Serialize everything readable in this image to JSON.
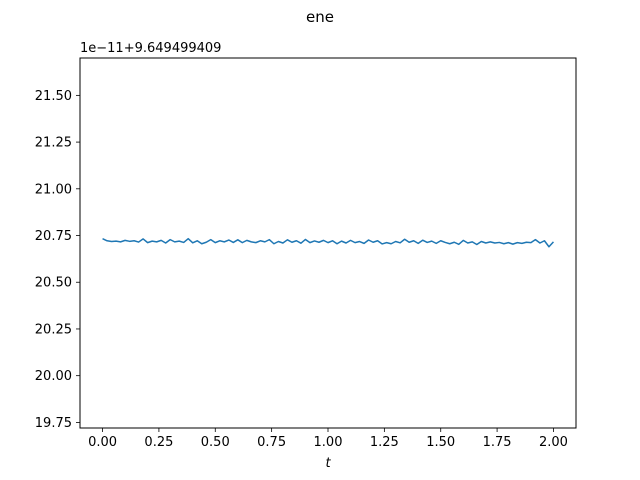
{
  "chart_data": {
    "type": "line",
    "title": "ene",
    "xlabel": "t",
    "ylabel": "",
    "y_offset_label": "1e−11+9.649499409",
    "xlim": [
      -0.1,
      2.1
    ],
    "ylim": [
      19.72,
      21.7
    ],
    "x_ticks": [
      0.0,
      0.25,
      0.5,
      0.75,
      1.0,
      1.25,
      1.5,
      1.75,
      2.0
    ],
    "x_tick_labels": [
      "0.00",
      "0.25",
      "0.50",
      "0.75",
      "1.00",
      "1.25",
      "1.50",
      "1.75",
      "2.00"
    ],
    "y_ticks": [
      19.75,
      20.0,
      20.25,
      20.5,
      20.75,
      21.0,
      21.25,
      21.5
    ],
    "y_tick_labels": [
      "19.75",
      "20.00",
      "20.25",
      "20.50",
      "20.75",
      "21.00",
      "21.25",
      "21.50"
    ],
    "grid": false,
    "series": [
      {
        "color": "#1f77b4",
        "x": [
          0.0,
          0.02,
          0.04,
          0.06,
          0.08,
          0.1,
          0.12,
          0.14,
          0.16,
          0.18,
          0.2,
          0.22,
          0.24,
          0.26,
          0.28,
          0.3,
          0.32,
          0.34,
          0.36,
          0.38,
          0.4,
          0.42,
          0.44,
          0.46,
          0.48,
          0.5,
          0.52,
          0.54,
          0.56,
          0.58,
          0.6,
          0.62,
          0.64,
          0.66,
          0.68,
          0.7,
          0.72,
          0.74,
          0.76,
          0.78,
          0.8,
          0.82,
          0.84,
          0.86,
          0.88,
          0.9,
          0.92,
          0.94,
          0.96,
          0.98,
          1.0,
          1.02,
          1.04,
          1.06,
          1.08,
          1.1,
          1.12,
          1.14,
          1.16,
          1.18,
          1.2,
          1.22,
          1.24,
          1.26,
          1.28,
          1.3,
          1.32,
          1.34,
          1.36,
          1.38,
          1.4,
          1.42,
          1.44,
          1.46,
          1.48,
          1.5,
          1.52,
          1.54,
          1.56,
          1.58,
          1.6,
          1.62,
          1.64,
          1.66,
          1.68,
          1.7,
          1.72,
          1.74,
          1.76,
          1.78,
          1.8,
          1.82,
          1.84,
          1.86,
          1.88,
          1.9,
          1.92,
          1.94,
          1.96,
          1.98,
          2.0
        ],
        "values": [
          20.733,
          20.722,
          20.718,
          20.72,
          20.716,
          20.724,
          20.719,
          20.722,
          20.715,
          20.732,
          20.712,
          20.72,
          20.716,
          20.724,
          20.71,
          20.728,
          20.716,
          20.72,
          20.713,
          20.733,
          20.711,
          20.722,
          20.706,
          20.714,
          20.728,
          20.712,
          20.722,
          20.716,
          20.726,
          20.713,
          20.727,
          20.712,
          20.724,
          20.716,
          20.712,
          20.722,
          20.716,
          20.728,
          20.706,
          20.718,
          20.71,
          20.727,
          20.714,
          20.722,
          20.709,
          20.729,
          20.712,
          20.721,
          20.714,
          20.724,
          20.712,
          20.722,
          20.706,
          20.72,
          20.71,
          20.724,
          20.712,
          20.718,
          20.708,
          20.726,
          20.714,
          20.722,
          20.705,
          20.712,
          20.706,
          20.718,
          20.711,
          20.73,
          20.714,
          20.722,
          20.708,
          20.725,
          20.713,
          20.72,
          20.708,
          20.722,
          20.713,
          20.706,
          20.714,
          20.703,
          20.724,
          20.71,
          20.716,
          20.702,
          20.718,
          20.71,
          20.716,
          20.71,
          20.713,
          20.706,
          20.712,
          20.704,
          20.712,
          20.708,
          20.714,
          20.712,
          20.728,
          20.71,
          20.722,
          20.69,
          20.716
        ]
      }
    ]
  }
}
